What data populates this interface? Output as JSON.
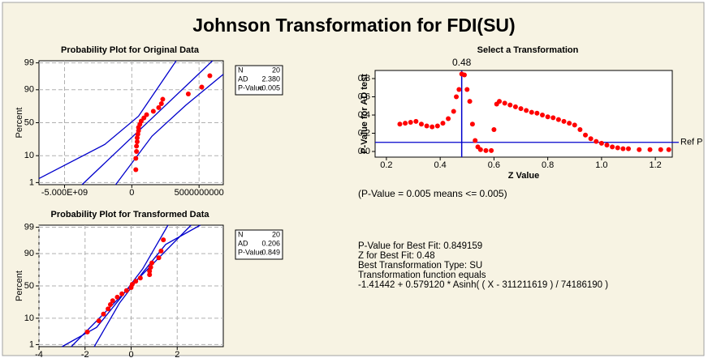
{
  "title": "Johnson Transformation for FDI(SU)",
  "chart_data": [
    {
      "type": "probability",
      "title": "Probability Plot for Original Data",
      "y_label": "Percent",
      "xlim": [
        -6900000000,
        6800000000
      ],
      "ylim": [
        0.8,
        99.2
      ],
      "y_scale": "probability",
      "xticks": [
        {
          "value": -5000000000,
          "label": "-5.000E+09"
        },
        0,
        {
          "value": 5000000000,
          "label": "5000000000"
        }
      ],
      "yticks": [
        1,
        10,
        50,
        90,
        99
      ],
      "grid": true,
      "color": "#ff0000",
      "line_color": "#0000cc",
      "x": [
        300000000,
        300000000,
        350000000,
        350000000,
        400000000,
        400000000,
        450000000,
        500000000,
        500000000,
        600000000,
        700000000,
        900000000,
        1100000000,
        1600000000,
        2000000000,
        2200000000,
        2300000000,
        4200000000,
        5200000000,
        5800000000
      ],
      "values": [
        3.4,
        8.3,
        13.2,
        18.1,
        23.0,
        27.9,
        32.8,
        37.7,
        42.6,
        47.5,
        52.5,
        57.4,
        62.3,
        67.2,
        72.1,
        77.0,
        81.9,
        86.8,
        91.7,
        96.6
      ],
      "lines": [
        {
          "x": [
            -3700000000,
            6000000000
          ],
          "values": [
            0.8,
            99.2
          ]
        },
        {
          "x": [
            -6900000000,
            -2000000000,
            500000000,
            3300000000
          ],
          "values": [
            1.5,
            20,
            60,
            99.2
          ]
        },
        {
          "x": [
            -1200000000,
            1500000000,
            4000000000,
            6800000000
          ],
          "values": [
            0.8,
            30,
            75,
            97
          ]
        }
      ],
      "stats": [
        [
          "N",
          "20"
        ],
        [
          "AD",
          "2.380"
        ],
        [
          "P-Value",
          "<0.005"
        ]
      ]
    },
    {
      "type": "scatter",
      "title": "Select a Transformation",
      "x_label": "Z Value",
      "y_label": "P-Value for AD test",
      "xlim": [
        0.158,
        1.263
      ],
      "ylim": [
        -0.062,
        0.889
      ],
      "xticks": [
        0.2,
        0.4,
        0.6,
        0.8,
        {
          "value": 1,
          "label": "1.0"
        },
        1.2
      ],
      "yticks": [
        {
          "value": 0,
          "label": "0.0"
        },
        0.2,
        0.4,
        0.6,
        0.8
      ],
      "grid": false,
      "color": "#ff0000",
      "line_color": "#0000cc",
      "vline": 0.48,
      "hline": 0.1,
      "hline_label": "Ref P",
      "note": "(P-Value = 0.005 means <= 0.005)",
      "x": [
        0.25,
        0.27,
        0.29,
        0.31,
        0.33,
        0.35,
        0.37,
        0.39,
        0.41,
        0.43,
        0.45,
        0.46,
        0.47,
        0.48,
        0.49,
        0.5,
        0.51,
        0.52,
        0.53,
        0.54,
        0.55,
        0.57,
        0.59,
        0.6,
        0.61,
        0.62,
        0.64,
        0.66,
        0.68,
        0.7,
        0.72,
        0.74,
        0.76,
        0.78,
        0.8,
        0.82,
        0.84,
        0.86,
        0.88,
        0.9,
        0.92,
        0.94,
        0.96,
        0.98,
        1.0,
        1.02,
        1.04,
        1.06,
        1.08,
        1.1,
        1.14,
        1.18,
        1.22,
        1.25
      ],
      "values": [
        0.3,
        0.31,
        0.32,
        0.33,
        0.3,
        0.28,
        0.27,
        0.28,
        0.31,
        0.36,
        0.44,
        0.6,
        0.68,
        0.85,
        0.84,
        0.68,
        0.55,
        0.3,
        0.12,
        0.05,
        0.02,
        0.01,
        0.01,
        0.24,
        0.52,
        0.55,
        0.53,
        0.51,
        0.49,
        0.47,
        0.45,
        0.43,
        0.42,
        0.4,
        0.38,
        0.37,
        0.35,
        0.33,
        0.31,
        0.29,
        0.24,
        0.18,
        0.14,
        0.11,
        0.09,
        0.07,
        0.05,
        0.04,
        0.03,
        0.03,
        0.02,
        0.02,
        0.02,
        0.02
      ]
    },
    {
      "type": "probability",
      "title": "Probability Plot for Transformed Data",
      "y_label": "Percent",
      "xlim": [
        -4,
        4
      ],
      "ylim": [
        0.8,
        99.2
      ],
      "y_scale": "probability",
      "xticks": [
        -4,
        -2,
        0,
        2
      ],
      "yticks": [
        1,
        10,
        50,
        90,
        99
      ],
      "grid": true,
      "color": "#ff0000",
      "line_color": "#0000cc",
      "x": [
        -1.9,
        -1.4,
        -1.2,
        -1.0,
        -0.9,
        -0.8,
        -0.6,
        -0.4,
        -0.2,
        0.0,
        0.05,
        0.2,
        0.4,
        0.8,
        0.8,
        0.85,
        0.9,
        1.2,
        1.3,
        1.4
      ],
      "values": [
        3.4,
        8.3,
        13.2,
        18.1,
        23.0,
        27.9,
        32.8,
        37.7,
        42.6,
        47.5,
        52.5,
        57.4,
        62.3,
        67.2,
        72.1,
        77.0,
        81.9,
        86.8,
        91.7,
        96.6
      ],
      "lines": [
        {
          "x": [
            -2.6,
            2.6
          ],
          "values": [
            0.8,
            99.2
          ]
        },
        {
          "x": [
            -3.0,
            -1.5,
            -0.5,
            0.5,
            1.6
          ],
          "values": [
            0.8,
            5,
            30,
            75,
            99.2
          ]
        },
        {
          "x": [
            -1.6,
            -0.5,
            0.5,
            1.5,
            3.0
          ],
          "values": [
            0.8,
            25,
            70,
            95,
            99.2
          ]
        }
      ],
      "stats": [
        [
          "N",
          "20"
        ],
        [
          "AD",
          "0.206"
        ],
        [
          "P-Value",
          "0.849"
        ]
      ]
    }
  ],
  "summary": [
    "P-Value for Best Fit: 0.849159",
    "Z for Best Fit: 0.48",
    "Best Transformation Type: SU",
    "Transformation function equals",
    "-1.41442 + 0.579120 * Asinh( ( X - 311211619 ) / 74186190 )"
  ]
}
